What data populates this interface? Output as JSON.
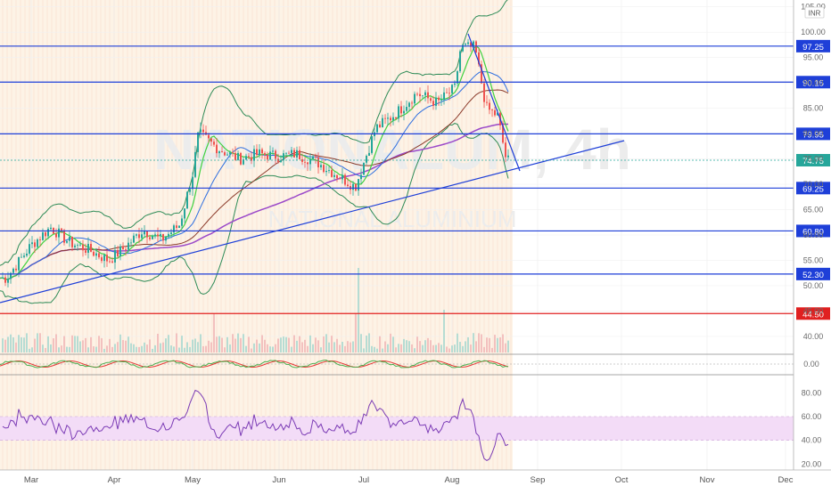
{
  "chart_data": {
    "type": "candlestick",
    "title": "",
    "currency": "INR",
    "watermark": [
      "NATIONALUM, 4h",
      "NATIONAL ALUMINIUM"
    ],
    "x_labels": [
      "Mar",
      "Apr",
      "May",
      "Jun",
      "Jul",
      "Aug",
      "Sep",
      "Oct",
      "Nov",
      "Dec"
    ],
    "price_axis": {
      "ticks": [
        40.0,
        45.0,
        50.0,
        55.0,
        60.0,
        65.0,
        70.0,
        75.0,
        80.0,
        85.0,
        90.0,
        95.0,
        100.0,
        105.0
      ],
      "tick_labels": [
        "40.00",
        "45.00",
        "50.00",
        "55.00",
        "60.00",
        "65.00",
        "70.00",
        "75.00",
        "80.00",
        "85.00",
        "90.00",
        "95.00",
        "100.00",
        "105.00"
      ],
      "range": [
        37,
        106
      ]
    },
    "horizontal_levels": [
      {
        "value": 97.25,
        "label": "97.25",
        "color": "#1e3fd8"
      },
      {
        "value": 90.15,
        "label": "90.15",
        "color": "#1e3fd8"
      },
      {
        "value": 79.95,
        "label": "79.95",
        "color": "#1e3fd8"
      },
      {
        "value": 69.25,
        "label": "69.25",
        "color": "#1e3fd8"
      },
      {
        "value": 60.8,
        "label": "60.80",
        "color": "#1e3fd8"
      },
      {
        "value": 52.3,
        "label": "52.30",
        "color": "#1e3fd8"
      },
      {
        "value": 44.5,
        "label": "44.50",
        "color": "#e02020"
      }
    ],
    "last_price": {
      "value": 74.75,
      "label": "74.75",
      "color": "#26a69a"
    },
    "price_series": {
      "dates": [
        "Feb 22",
        "Mar 1",
        "Mar 8",
        "Mar 15",
        "Mar 22",
        "Mar 29",
        "Apr 5",
        "Apr 12",
        "Apr 19",
        "Apr 26",
        "May 1",
        "May 3",
        "May 10",
        "May 17",
        "May 24",
        "May 31",
        "Jun 7",
        "Jun 14",
        "Jun 21",
        "Jun 28",
        "Jul 5",
        "Jul 12",
        "Jul 19",
        "Jul 26",
        "Aug 2",
        "Aug 4",
        "Aug 9",
        "Aug 13",
        "Aug 17",
        "Aug 20"
      ],
      "close": [
        51.5,
        58.0,
        61.5,
        58.5,
        57.0,
        55.0,
        57.5,
        61.0,
        59.0,
        62.0,
        72.0,
        80.0,
        77.0,
        75.0,
        76.0,
        75.5,
        76.0,
        74.5,
        72.0,
        69.5,
        81.0,
        84.0,
        88.0,
        86.0,
        89.0,
        97.0,
        97.0,
        85.0,
        83.5,
        74.75
      ]
    },
    "overlays": [
      "Bollinger Bands",
      "EMA fast (green)",
      "EMA slow (blue)",
      "SMA long (brown)",
      "SMA 200 (purple)"
    ],
    "lower_panels": [
      {
        "name": "momentum",
        "tick_labels": [
          "0.00"
        ]
      },
      {
        "name": "RSI",
        "tick_labels": [
          "80.00",
          "60.00",
          "40.00",
          "20.00"
        ],
        "band": [
          40,
          60
        ]
      }
    ]
  },
  "colors": {
    "level_line": "#1e3fd8",
    "support_line": "#e02020",
    "candle_up": "#26a69a",
    "candle_down": "#ef5350",
    "bollinger": "#2e8b57",
    "ema_fast": "#3fd13f",
    "ema_slow": "#2f6fe0",
    "sma_long": "#8b3a2a",
    "sma_200": "#9b49c9",
    "rsi_line": "#7b3bb5",
    "rsi_band": "#f3dcf7"
  }
}
